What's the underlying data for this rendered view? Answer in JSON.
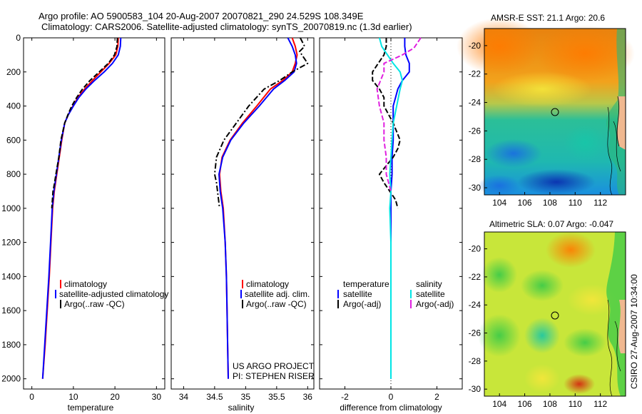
{
  "header": {
    "line1": "Argo profile: AO 5900583_104 20-Aug-2007 20070821_290 24.529S 108.349E",
    "line2": "Climatology: CARS2006. Satellite-adjusted climatology: synTS_20070819.nc (1.3d earlier)"
  },
  "side_label": "CSIRO 27-Aug-2007 10:34:00",
  "credit": {
    "line1": "US ARGO PROJECT",
    "line2": "PI: STEPHEN RISER"
  },
  "colors": {
    "climatology": "#ff0000",
    "satellite": "#0000ff",
    "argo": "#000000",
    "salinity_satellite": "#00e5e5",
    "salinity_argo": "#e020e0"
  },
  "chart_data": [
    {
      "type": "line",
      "id": "temperature",
      "xlabel": "temperature",
      "xlim": [
        -2,
        32
      ],
      "xticks": [
        0,
        10,
        20,
        30
      ],
      "ylim": [
        0,
        2060
      ],
      "yticks": [
        0,
        200,
        400,
        600,
        800,
        1000,
        1200,
        1400,
        1600,
        1800,
        2000
      ],
      "y_inverted": true,
      "legend": [
        "climatology",
        "satellite-adjusted climatology",
        "Argo(..raw -QC)"
      ],
      "series": [
        {
          "name": "climatology",
          "style": "solid",
          "points": [
            [
              20.8,
              0
            ],
            [
              20.7,
              50
            ],
            [
              20.2,
              100
            ],
            [
              18.6,
              150
            ],
            [
              16.6,
              200
            ],
            [
              14.6,
              250
            ],
            [
              12.7,
              300
            ],
            [
              11.1,
              350
            ],
            [
              9.9,
              400
            ],
            [
              8.8,
              450
            ],
            [
              7.9,
              500
            ],
            [
              7.2,
              600
            ],
            [
              6.6,
              700
            ],
            [
              6,
              800
            ],
            [
              5.4,
              900
            ],
            [
              5,
              1000
            ],
            [
              4.6,
              1200
            ],
            [
              4.2,
              1400
            ],
            [
              3.7,
              1600
            ],
            [
              3.2,
              1800
            ],
            [
              2.6,
              2000
            ]
          ]
        },
        {
          "name": "satellite-adjusted climatology",
          "style": "solid",
          "points": [
            [
              21.4,
              0
            ],
            [
              21.3,
              50
            ],
            [
              20.8,
              100
            ],
            [
              19.4,
              150
            ],
            [
              17.4,
              200
            ],
            [
              15.1,
              250
            ],
            [
              13,
              300
            ],
            [
              11.3,
              350
            ],
            [
              10,
              400
            ],
            [
              8.8,
              450
            ],
            [
              7.9,
              500
            ],
            [
              7.1,
              600
            ],
            [
              6.5,
              700
            ],
            [
              5.9,
              800
            ],
            [
              5.3,
              900
            ],
            [
              4.9,
              1000
            ],
            [
              4.5,
              1200
            ],
            [
              4.1,
              1400
            ],
            [
              3.6,
              1600
            ],
            [
              3.1,
              1800
            ],
            [
              2.6,
              2000
            ]
          ]
        },
        {
          "name": "Argo(..raw -QC)",
          "style": "dash",
          "points": [
            [
              20.6,
              0
            ],
            [
              20.5,
              50
            ],
            [
              19.9,
              100
            ],
            [
              18.4,
              150
            ],
            [
              16.2,
              200
            ],
            [
              14,
              250
            ],
            [
              12.2,
              300
            ],
            [
              10.8,
              350
            ],
            [
              9.6,
              400
            ],
            [
              8.7,
              450
            ],
            [
              7.9,
              500
            ],
            [
              7,
              600
            ],
            [
              6.5,
              700
            ],
            [
              5.8,
              800
            ],
            [
              5.4,
              860
            ],
            [
              5.1,
              900
            ],
            [
              4.8,
              1000
            ]
          ]
        }
      ]
    },
    {
      "type": "line",
      "id": "salinity",
      "xlabel": "salinity",
      "xlim": [
        33.8,
        36.1
      ],
      "xticks": [
        34,
        34.5,
        35,
        35.5,
        36
      ],
      "ylim": [
        0,
        2060
      ],
      "y_inverted": true,
      "legend": [
        "climatology",
        "satellite adj. clim.",
        "Argo(..raw -QC)"
      ],
      "series": [
        {
          "name": "climatology",
          "style": "solid",
          "points": [
            [
              35.75,
              0
            ],
            [
              35.8,
              50
            ],
            [
              35.83,
              100
            ],
            [
              35.8,
              150
            ],
            [
              35.75,
              200
            ],
            [
              35.6,
              250
            ],
            [
              35.4,
              300
            ],
            [
              35.18,
              400
            ],
            [
              34.95,
              500
            ],
            [
              34.75,
              600
            ],
            [
              34.62,
              700
            ],
            [
              34.58,
              800
            ],
            [
              34.6,
              900
            ],
            [
              34.64,
              1000
            ],
            [
              34.67,
              1200
            ],
            [
              34.69,
              1400
            ],
            [
              34.7,
              1600
            ],
            [
              34.71,
              1800
            ],
            [
              34.72,
              2000
            ]
          ]
        },
        {
          "name": "satellite adj. clim.",
          "style": "solid",
          "points": [
            [
              35.68,
              0
            ],
            [
              35.75,
              50
            ],
            [
              35.8,
              100
            ],
            [
              35.82,
              150
            ],
            [
              35.78,
              200
            ],
            [
              35.63,
              250
            ],
            [
              35.45,
              300
            ],
            [
              35.22,
              400
            ],
            [
              34.97,
              500
            ],
            [
              34.76,
              600
            ],
            [
              34.63,
              700
            ],
            [
              34.57,
              800
            ],
            [
              34.59,
              900
            ],
            [
              34.63,
              1000
            ],
            [
              34.67,
              1200
            ],
            [
              34.69,
              1400
            ],
            [
              34.7,
              1600
            ],
            [
              34.71,
              1800
            ],
            [
              34.72,
              2000
            ]
          ]
        },
        {
          "name": "Argo(..raw -QC)",
          "style": "dashdot",
          "points": [
            [
              35.88,
              0
            ],
            [
              35.95,
              50
            ],
            [
              35.87,
              80
            ],
            [
              36,
              150
            ],
            [
              35.75,
              200
            ],
            [
              35.55,
              250
            ],
            [
              35.3,
              300
            ],
            [
              35.05,
              400
            ],
            [
              34.85,
              500
            ],
            [
              34.65,
              600
            ],
            [
              34.53,
              700
            ],
            [
              34.5,
              800
            ],
            [
              34.53,
              850
            ],
            [
              34.58,
              1000
            ]
          ]
        }
      ]
    },
    {
      "type": "line",
      "id": "difference",
      "xlabel": "difference from climatology",
      "xlim": [
        -3.1,
        3.1
      ],
      "xticks": [
        -2,
        0,
        2
      ],
      "ylim": [
        0,
        2060
      ],
      "y_inverted": true,
      "legend_groups": [
        {
          "title": "temperature",
          "items": [
            "satellite",
            "Argo(-adj)"
          ]
        },
        {
          "title": "salinity",
          "items": [
            "satellite",
            "Argo(-adj)"
          ]
        }
      ],
      "series": [
        {
          "name": "temperature satellite",
          "style": "solid",
          "points": [
            [
              0.6,
              0
            ],
            [
              0.6,
              50
            ],
            [
              0.65,
              100
            ],
            [
              0.8,
              150
            ],
            [
              0.8,
              200
            ],
            [
              0.5,
              250
            ],
            [
              0.3,
              300
            ],
            [
              0.2,
              350
            ],
            [
              0.1,
              400
            ],
            [
              0.1,
              500
            ],
            [
              0.1,
              600
            ],
            [
              0.05,
              700
            ],
            [
              0.05,
              800
            ],
            [
              0,
              900
            ],
            [
              0,
              1000
            ],
            [
              0,
              1200
            ],
            [
              0,
              1400
            ],
            [
              0,
              1600
            ],
            [
              0,
              1800
            ],
            [
              0,
              2000
            ]
          ]
        },
        {
          "name": "temperature Argo(-adj)",
          "style": "dash",
          "points": [
            [
              -0.2,
              0
            ],
            [
              -0.2,
              50
            ],
            [
              -0.3,
              100
            ],
            [
              -0.6,
              160
            ],
            [
              -0.8,
              200
            ],
            [
              -0.8,
              250
            ],
            [
              -0.5,
              300
            ],
            [
              -0.3,
              350
            ],
            [
              -0.3,
              400
            ],
            [
              -0.1,
              450
            ],
            [
              0.1,
              500
            ],
            [
              0.4,
              600
            ],
            [
              0.3,
              650
            ],
            [
              0.1,
              700
            ],
            [
              -0.2,
              750
            ],
            [
              -0.5,
              800
            ],
            [
              -0.3,
              850
            ],
            [
              0.2,
              950
            ],
            [
              0.3,
              1000
            ]
          ]
        },
        {
          "name": "salinity satellite",
          "style": "solid",
          "points": [
            [
              -0.5,
              0
            ],
            [
              -0.4,
              50
            ],
            [
              -0.15,
              100
            ],
            [
              0.1,
              150
            ],
            [
              0.4,
              200
            ],
            [
              0.5,
              250
            ],
            [
              0.4,
              300
            ],
            [
              0.25,
              400
            ],
            [
              0.1,
              500
            ],
            [
              0.05,
              600
            ],
            [
              0,
              700
            ],
            [
              -0.05,
              800
            ],
            [
              0,
              900
            ],
            [
              -0.05,
              1000
            ],
            [
              0,
              1200
            ],
            [
              0,
              1400
            ],
            [
              0,
              1600
            ],
            [
              0,
              1800
            ],
            [
              0,
              2000
            ]
          ]
        },
        {
          "name": "salinity Argo(-adj)",
          "style": "dash",
          "points": [
            [
              1.3,
              0
            ],
            [
              1,
              60
            ],
            [
              0.5,
              100
            ],
            [
              -0.3,
              150
            ],
            [
              -0.3,
              200
            ],
            [
              -0.6,
              300
            ],
            [
              -0.5,
              400
            ],
            [
              -0.3,
              500
            ],
            [
              -0.3,
              600
            ],
            [
              -0.2,
              700
            ],
            [
              -0.2,
              800
            ],
            [
              -0.1,
              850
            ],
            [
              0,
              900
            ]
          ]
        }
      ]
    },
    {
      "type": "heatmap",
      "id": "sst_map",
      "title": "AMSR-E SST: 21.1 Argo: 20.6",
      "xlim": [
        102.8,
        114
      ],
      "xticks": [
        104,
        106,
        108,
        110,
        112
      ],
      "ylim": [
        -30.5,
        -18.8
      ],
      "yticks": [
        -20,
        -22,
        -24,
        -26,
        -28,
        -30
      ],
      "marker": [
        108.35,
        -24.53
      ]
    },
    {
      "type": "heatmap",
      "id": "sla_map",
      "title": "Altimetric SLA: 0.07 Argo: -0.047",
      "xlim": [
        102.8,
        114
      ],
      "xticks": [
        104,
        106,
        108,
        110,
        112
      ],
      "ylim": [
        -30.5,
        -18.8
      ],
      "yticks": [
        -20,
        -22,
        -24,
        -26,
        -28,
        -30
      ],
      "marker": [
        108.35,
        -24.53
      ]
    }
  ]
}
